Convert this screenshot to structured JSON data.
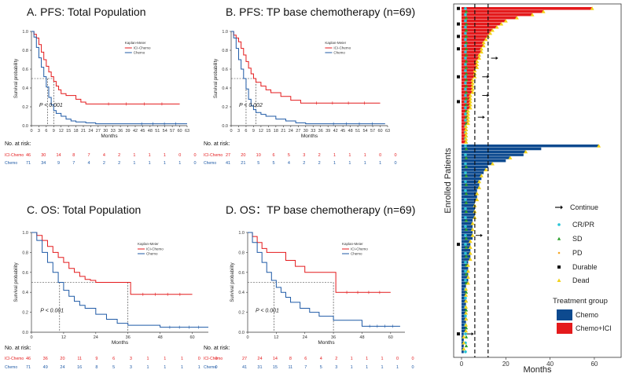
{
  "colors": {
    "ici": "#e41a1c",
    "chemo": "#1f5aa6",
    "chemo_bar": "#0d4a8f",
    "axis": "#333333"
  },
  "panels": [
    {
      "id": "A",
      "title": "A. PFS: Total Population",
      "xlabel": "Months",
      "ylabel": "Survival probability",
      "pvalue": "P < 0.001",
      "legend_title": "Kaplan-Meier",
      "legend_ici": "ICI-Chemo",
      "legend_chemo": "Chemo",
      "xticks": [
        "0",
        "3",
        "6",
        "9",
        "12",
        "15",
        "18",
        "21",
        "24",
        "27",
        "30",
        "33",
        "36",
        "39",
        "42",
        "45",
        "48",
        "51",
        "54",
        "57",
        "60",
        "63"
      ],
      "yticks": [
        "0.0",
        "0.2",
        "0.4",
        "0.6",
        "0.8",
        "1.0"
      ],
      "xmax": 63,
      "median_ici": 9,
      "median_chemo": 6.5,
      "chart_data": {
        "type": "line",
        "series": [
          {
            "name": "ICI-Chemo",
            "x": [
              0,
              1,
              2,
              3,
              4,
              5,
              6,
              7,
              8,
              9,
              10,
              11,
              12,
              14,
              16,
              18,
              20,
              22,
              24,
              60
            ],
            "y": [
              1,
              0.97,
              0.93,
              0.86,
              0.78,
              0.7,
              0.63,
              0.57,
              0.52,
              0.47,
              0.42,
              0.38,
              0.34,
              0.32,
              0.32,
              0.28,
              0.25,
              0.23,
              0.23,
              0.23
            ]
          },
          {
            "name": "Chemo",
            "x": [
              0,
              1,
              2,
              3,
              4,
              5,
              6,
              7,
              8,
              9,
              10,
              12,
              14,
              16,
              18,
              22,
              26,
              30,
              40,
              63
            ],
            "y": [
              1,
              0.94,
              0.83,
              0.72,
              0.62,
              0.52,
              0.41,
              0.3,
              0.22,
              0.16,
              0.13,
              0.1,
              0.07,
              0.05,
              0.04,
              0.03,
              0.02,
              0.02,
              0.02,
              0.02
            ]
          }
        ]
      },
      "risk": {
        "label": "No. at risk:",
        "ici_label": "ICI-Chemo",
        "chemo_label": "Chemo",
        "ici": [
          "46",
          "30",
          "14",
          "8",
          "7",
          "4",
          "2",
          "1",
          "1",
          "1",
          "0",
          "0"
        ],
        "chemo": [
          "71",
          "34",
          "9",
          "7",
          "4",
          "2",
          "2",
          "1",
          "1",
          "1",
          "1",
          "0"
        ]
      }
    },
    {
      "id": "B",
      "title": "B. PFS: TP base chemotherapy (n=69)",
      "xlabel": "Months",
      "ylabel": "Survival probability",
      "pvalue": "P < 0.002",
      "legend_title": "Kaplan-Meier",
      "legend_ici": "ICI-Chemo",
      "legend_chemo": "Chemo",
      "xticks": [
        "0",
        "3",
        "6",
        "9",
        "12",
        "15",
        "18",
        "21",
        "24",
        "27",
        "30",
        "33",
        "36",
        "39",
        "42",
        "45",
        "48",
        "51",
        "54",
        "57",
        "60",
        "63"
      ],
      "yticks": [
        "0.0",
        "0.2",
        "0.4",
        "0.6",
        "0.8",
        "1.0"
      ],
      "xmax": 63,
      "median_ici": 10,
      "median_chemo": 6,
      "chart_data": {
        "type": "line",
        "series": [
          {
            "name": "ICI-Chemo",
            "x": [
              0,
              1,
              2,
              3,
              4,
              5,
              6,
              7,
              8,
              9,
              10,
              12,
              14,
              16,
              18,
              20,
              24,
              28,
              60
            ],
            "y": [
              1,
              0.96,
              0.93,
              0.89,
              0.82,
              0.75,
              0.68,
              0.61,
              0.55,
              0.5,
              0.46,
              0.42,
              0.38,
              0.35,
              0.35,
              0.31,
              0.27,
              0.24,
              0.24
            ]
          },
          {
            "name": "Chemo",
            "x": [
              0,
              1,
              2,
              3,
              4,
              5,
              6,
              7,
              8,
              9,
              10,
              12,
              14,
              18,
              22,
              26,
              30,
              36,
              62
            ],
            "y": [
              1,
              0.93,
              0.82,
              0.7,
              0.6,
              0.5,
              0.39,
              0.28,
              0.21,
              0.17,
              0.14,
              0.12,
              0.1,
              0.07,
              0.05,
              0.03,
              0.02,
              0.02,
              0.02
            ]
          }
        ]
      },
      "risk": {
        "label": "No. at risk:",
        "ici_label": "ICI-Chemo",
        "chemo_label": "Chemo",
        "ici": [
          "27",
          "20",
          "10",
          "6",
          "5",
          "3",
          "2",
          "1",
          "1",
          "1",
          "0",
          "0"
        ],
        "chemo": [
          "41",
          "21",
          "5",
          "5",
          "4",
          "2",
          "2",
          "1",
          "1",
          "1",
          "1",
          "0"
        ]
      }
    },
    {
      "id": "C",
      "title": "C. OS: Total Population",
      "xlabel": "Months",
      "ylabel": "Survival probability",
      "pvalue": "P < 0.001",
      "legend_title": "Kaplan-Meier",
      "legend_ici": "ICI-Chemo",
      "legend_chemo": "Chemo",
      "xticks": [
        "0",
        "12",
        "24",
        "36",
        "48",
        "60"
      ],
      "yticks": [
        "0.0",
        "0.2",
        "0.4",
        "0.6",
        "0.8",
        "1.0"
      ],
      "xmax": 66,
      "median_ici": 36,
      "median_chemo": 10.5,
      "chart_data": {
        "type": "line",
        "series": [
          {
            "name": "ICI-Chemo",
            "x": [
              0,
              2,
              4,
              6,
              8,
              10,
              12,
              14,
              16,
              18,
              20,
              22,
              24,
              36,
              37,
              60
            ],
            "y": [
              1,
              0.97,
              0.92,
              0.86,
              0.8,
              0.75,
              0.7,
              0.64,
              0.6,
              0.56,
              0.53,
              0.52,
              0.5,
              0.5,
              0.38,
              0.38
            ]
          },
          {
            "name": "Chemo",
            "x": [
              0,
              2,
              4,
              6,
              8,
              10,
              12,
              14,
              16,
              18,
              20,
              24,
              28,
              32,
              36,
              48,
              66
            ],
            "y": [
              1,
              0.92,
              0.8,
              0.7,
              0.6,
              0.5,
              0.42,
              0.36,
              0.31,
              0.27,
              0.24,
              0.18,
              0.13,
              0.09,
              0.07,
              0.05,
              0.05
            ]
          }
        ]
      },
      "risk": {
        "label": "No. at risk:",
        "ici_label": "ICI-Chemo",
        "chemo_label": "Chemo",
        "ici": [
          "46",
          "36",
          "20",
          "11",
          "9",
          "6",
          "3",
          "1",
          "1",
          "1",
          "0",
          "0"
        ],
        "chemo": [
          "71",
          "49",
          "24",
          "16",
          "8",
          "5",
          "3",
          "1",
          "1",
          "1",
          "1",
          "0"
        ]
      }
    },
    {
      "id": "D",
      "title": "D. OS：TP base chemotherapy (n=69)",
      "xlabel": "Months",
      "ylabel": "Survival probability",
      "pvalue": "P < 0.001",
      "legend_title": "Kaplan-Meier",
      "legend_ici": "ICI-Chemo",
      "legend_chemo": "Chemo",
      "xticks": [
        "0",
        "12",
        "24",
        "36",
        "48",
        "60"
      ],
      "yticks": [
        "0.0",
        "0.2",
        "0.4",
        "0.6",
        "0.8",
        "1.0"
      ],
      "xmax": 66,
      "median_ici": 36,
      "median_chemo": 11,
      "chart_data": {
        "type": "line",
        "series": [
          {
            "name": "ICI-Chemo",
            "x": [
              0,
              2,
              4,
              6,
              8,
              10,
              12,
              16,
              20,
              24,
              36,
              37,
              60
            ],
            "y": [
              1,
              0.96,
              0.9,
              0.84,
              0.8,
              0.8,
              0.8,
              0.72,
              0.66,
              0.6,
              0.6,
              0.4,
              0.4
            ]
          },
          {
            "name": "Chemo",
            "x": [
              0,
              2,
              4,
              6,
              8,
              10,
              12,
              14,
              16,
              18,
              22,
              26,
              30,
              36,
              48,
              64
            ],
            "y": [
              1,
              0.9,
              0.8,
              0.7,
              0.6,
              0.52,
              0.45,
              0.4,
              0.35,
              0.3,
              0.24,
              0.2,
              0.16,
              0.12,
              0.06,
              0.06
            ]
          }
        ]
      },
      "risk": {
        "label": "No. at risk:",
        "ici_label": "ICI-Chemo",
        "chemo_label": "Chemo",
        "ici": [
          "27",
          "24",
          "14",
          "8",
          "6",
          "4",
          "2",
          "1",
          "1",
          "1",
          "0",
          "0"
        ],
        "chemo": [
          "41",
          "31",
          "15",
          "11",
          "7",
          "5",
          "3",
          "1",
          "1",
          "1",
          "1",
          "0"
        ]
      }
    }
  ],
  "swimmer": {
    "ylabel": "Enrolled Patients",
    "xlabel": "Months",
    "xticks": [
      "0",
      "20",
      "40",
      "60"
    ],
    "xmax": 65,
    "ref_lines": [
      6,
      12
    ],
    "legend": {
      "continue": "Continue",
      "crpr": "CR/PR",
      "sd": "SD",
      "pd": "PD",
      "durable": "Durable",
      "dead": "Dead",
      "group_title": "Treatment group",
      "chemo": "Chemo",
      "chemo_ici": "Chemo+ICI"
    },
    "chart_data": {
      "type": "bar",
      "groups": [
        "Chemo+ICI",
        "Chemo"
      ],
      "ici_durations": [
        59,
        37,
        32,
        25,
        20,
        18,
        16,
        14,
        13,
        12,
        11,
        10,
        10,
        9,
        9,
        8,
        8,
        7,
        7,
        7,
        6,
        6,
        6,
        5,
        5,
        5,
        5,
        5,
        4,
        4,
        4,
        4,
        4,
        3,
        3,
        3,
        3,
        3,
        2,
        2,
        2,
        2,
        2,
        2
      ],
      "chemo_durations": [
        62,
        36,
        29,
        28,
        22,
        20,
        14,
        12,
        11,
        10,
        9,
        9,
        8,
        8,
        8,
        7,
        7,
        7,
        7,
        6,
        6,
        6,
        6,
        6,
        6,
        5,
        5,
        5,
        5,
        5,
        5,
        5,
        4,
        4,
        4,
        4,
        4,
        4,
        4,
        3,
        3,
        3,
        3,
        3,
        3,
        3,
        3,
        2,
        2,
        2,
        2,
        2,
        2,
        2,
        2,
        2,
        2,
        2,
        2,
        2,
        2,
        2,
        2,
        1,
        1,
        1,
        1,
        1,
        1,
        1
      ]
    }
  }
}
